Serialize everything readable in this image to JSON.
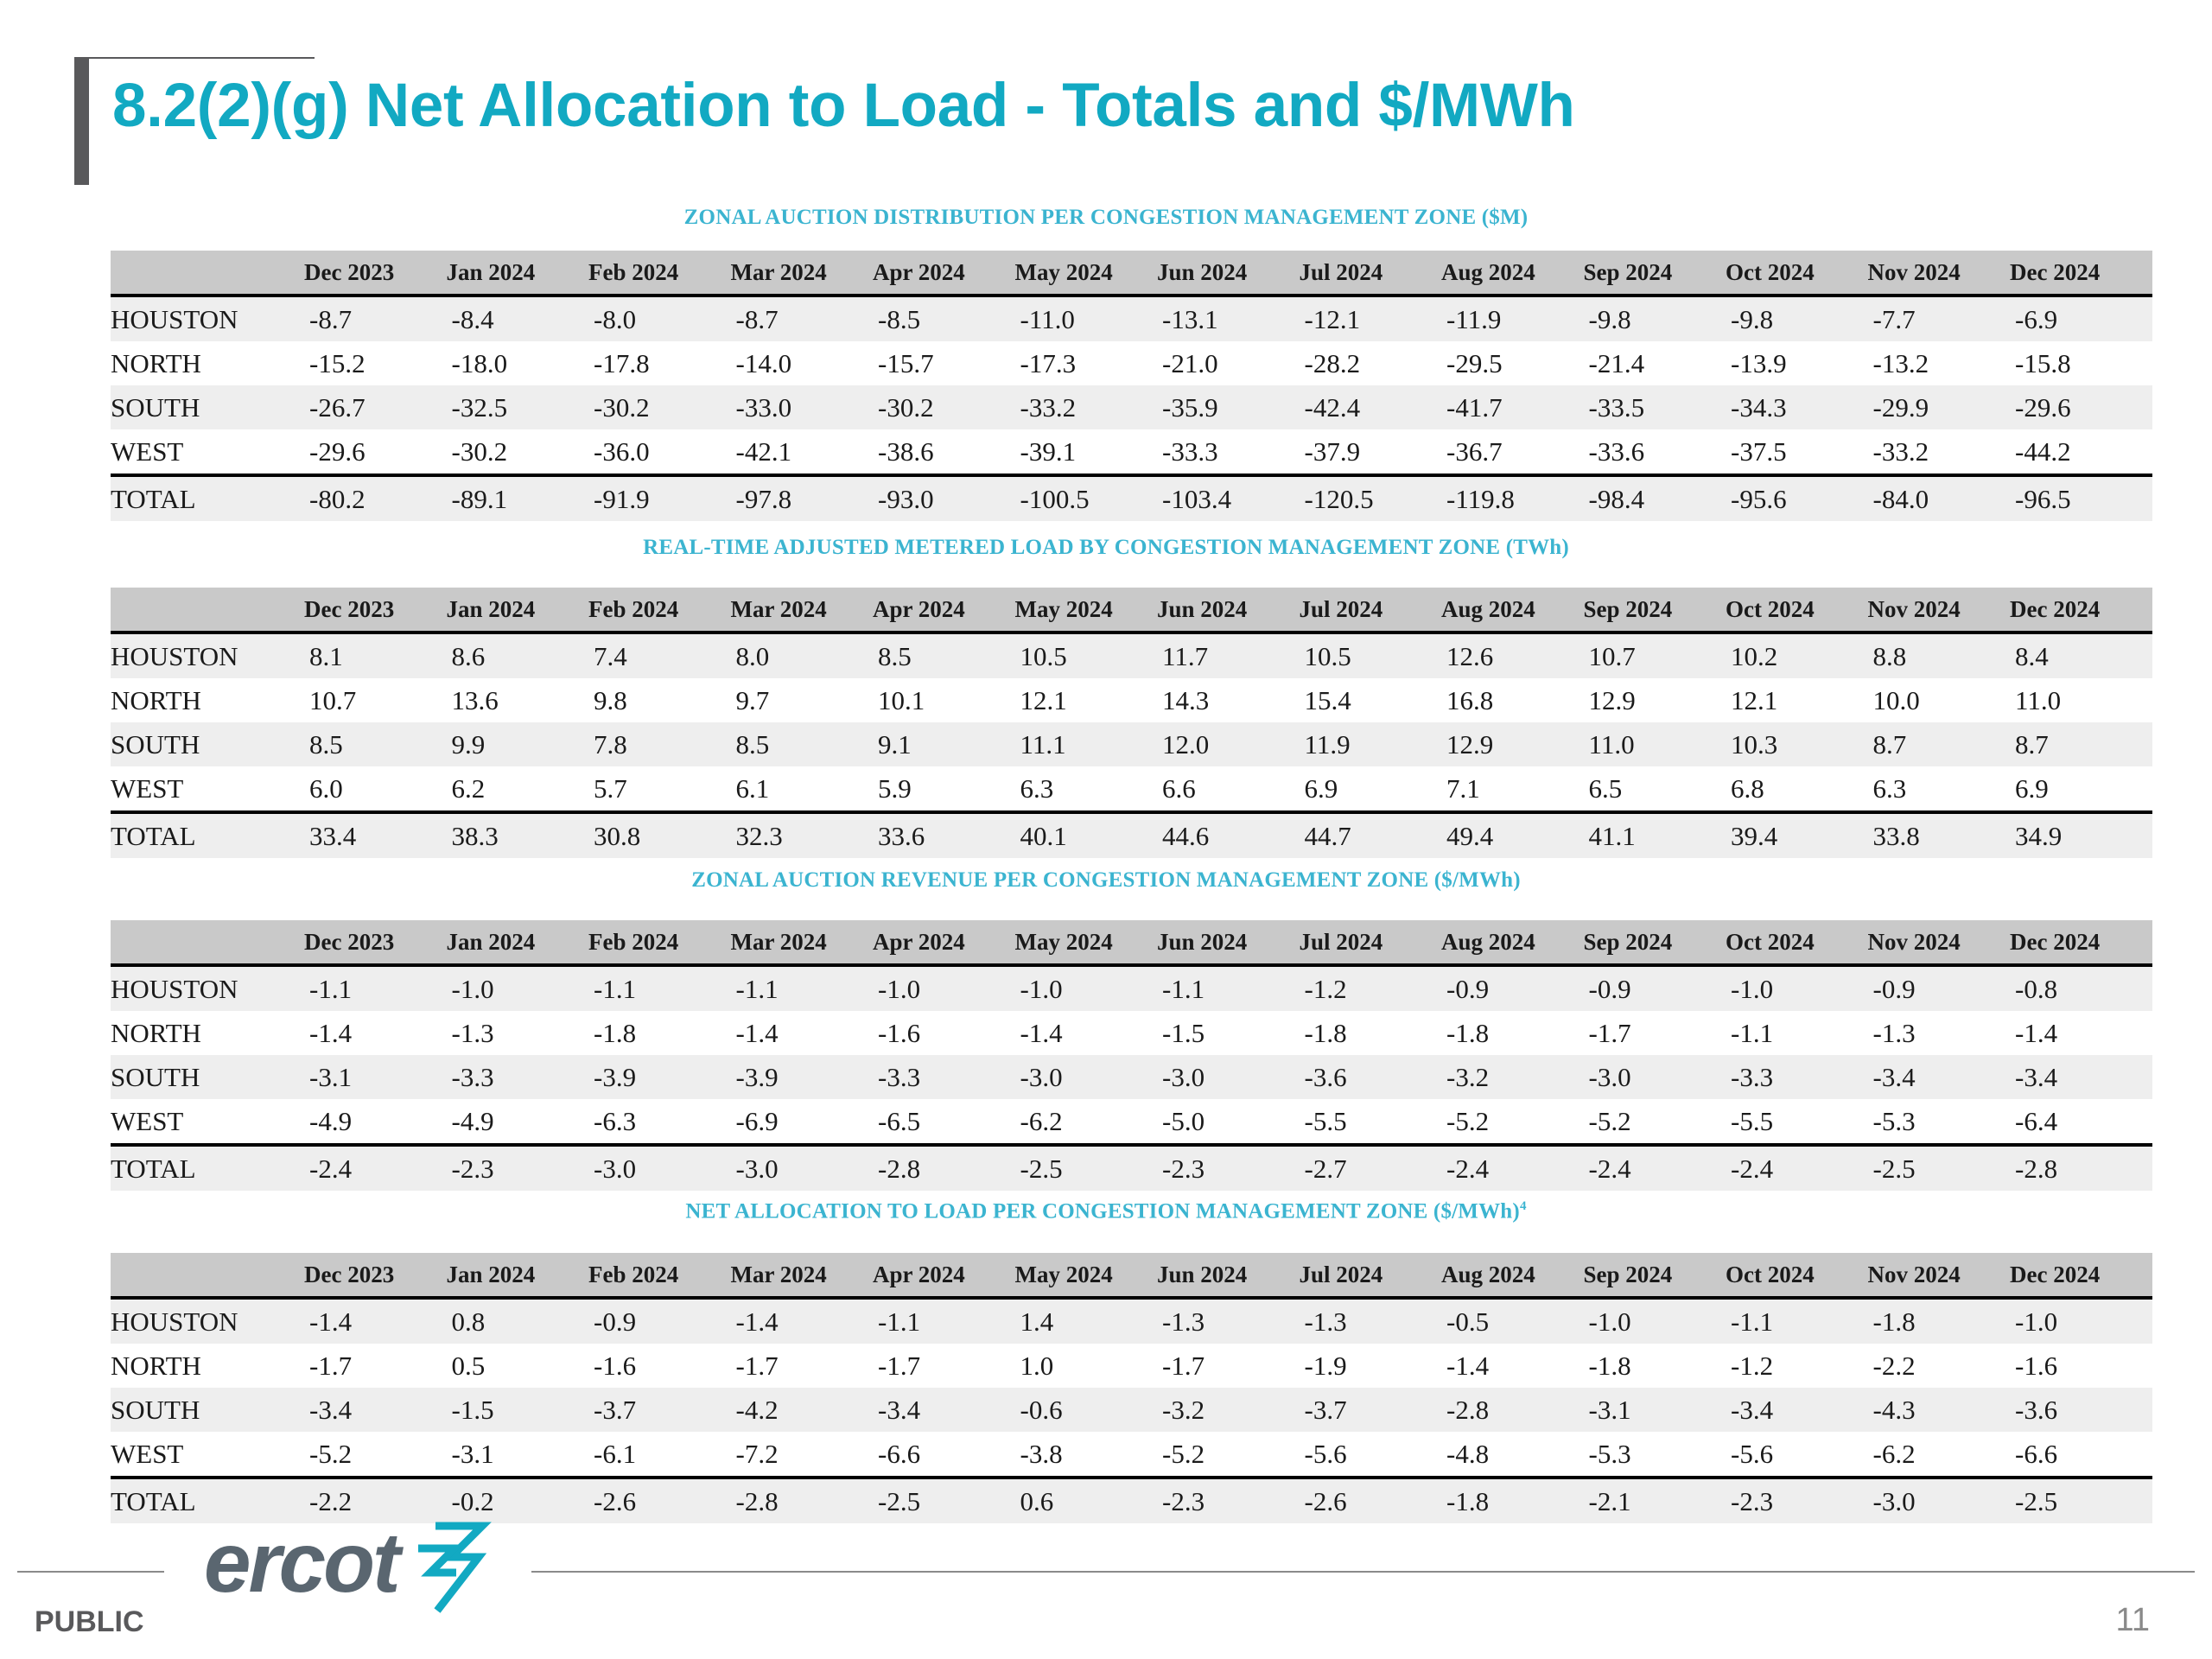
{
  "title": "8.2(2)(g) Net Allocation to Load - Totals and $/MWh",
  "columns": [
    "Dec 2023",
    "Jan 2024",
    "Feb 2024",
    "Mar 2024",
    "Apr 2024",
    "May 2024",
    "Jun 2024",
    "Jul 2024",
    "Aug 2024",
    "Sep 2024",
    "Oct 2024",
    "Nov 2024",
    "Dec 2024"
  ],
  "tables": [
    {
      "heading": "ZONAL AUCTION DISTRIBUTION PER CONGESTION MANAGEMENT ZONE ($M)",
      "superscript": "",
      "rows": [
        {
          "zone": "HOUSTON",
          "values": [
            "-8.7",
            "-8.4",
            "-8.0",
            "-8.7",
            "-8.5",
            "-11.0",
            "-13.1",
            "-12.1",
            "-11.9",
            "-9.8",
            "-9.8",
            "-7.7",
            "-6.9"
          ]
        },
        {
          "zone": "NORTH",
          "values": [
            "-15.2",
            "-18.0",
            "-17.8",
            "-14.0",
            "-15.7",
            "-17.3",
            "-21.0",
            "-28.2",
            "-29.5",
            "-21.4",
            "-13.9",
            "-13.2",
            "-15.8"
          ]
        },
        {
          "zone": "SOUTH",
          "values": [
            "-26.7",
            "-32.5",
            "-30.2",
            "-33.0",
            "-30.2",
            "-33.2",
            "-35.9",
            "-42.4",
            "-41.7",
            "-33.5",
            "-34.3",
            "-29.9",
            "-29.6"
          ]
        },
        {
          "zone": "WEST",
          "values": [
            "-29.6",
            "-30.2",
            "-36.0",
            "-42.1",
            "-38.6",
            "-39.1",
            "-33.3",
            "-37.9",
            "-36.7",
            "-33.6",
            "-37.5",
            "-33.2",
            "-44.2"
          ]
        },
        {
          "zone": "TOTAL",
          "values": [
            "-80.2",
            "-89.1",
            "-91.9",
            "-97.8",
            "-93.0",
            "-100.5",
            "-103.4",
            "-120.5",
            "-119.8",
            "-98.4",
            "-95.6",
            "-84.0",
            "-96.5"
          ]
        }
      ]
    },
    {
      "heading": "REAL-TIME ADJUSTED METERED LOAD BY CONGESTION MANAGEMENT ZONE (TWh)",
      "superscript": "",
      "rows": [
        {
          "zone": "HOUSTON",
          "values": [
            "8.1",
            "8.6",
            "7.4",
            "8.0",
            "8.5",
            "10.5",
            "11.7",
            "10.5",
            "12.6",
            "10.7",
            "10.2",
            "8.8",
            "8.4"
          ]
        },
        {
          "zone": "NORTH",
          "values": [
            "10.7",
            "13.6",
            "9.8",
            "9.7",
            "10.1",
            "12.1",
            "14.3",
            "15.4",
            "16.8",
            "12.9",
            "12.1",
            "10.0",
            "11.0"
          ]
        },
        {
          "zone": "SOUTH",
          "values": [
            "8.5",
            "9.9",
            "7.8",
            "8.5",
            "9.1",
            "11.1",
            "12.0",
            "11.9",
            "12.9",
            "11.0",
            "10.3",
            "8.7",
            "8.7"
          ]
        },
        {
          "zone": "WEST",
          "values": [
            "6.0",
            "6.2",
            "5.7",
            "6.1",
            "5.9",
            "6.3",
            "6.6",
            "6.9",
            "7.1",
            "6.5",
            "6.8",
            "6.3",
            "6.9"
          ]
        },
        {
          "zone": "TOTAL",
          "values": [
            "33.4",
            "38.3",
            "30.8",
            "32.3",
            "33.6",
            "40.1",
            "44.6",
            "44.7",
            "49.4",
            "41.1",
            "39.4",
            "33.8",
            "34.9"
          ]
        }
      ]
    },
    {
      "heading": "ZONAL AUCTION REVENUE PER CONGESTION MANAGEMENT ZONE ($/MWh)",
      "superscript": "",
      "rows": [
        {
          "zone": "HOUSTON",
          "values": [
            "-1.1",
            "-1.0",
            "-1.1",
            "-1.1",
            "-1.0",
            "-1.0",
            "-1.1",
            "-1.2",
            "-0.9",
            "-0.9",
            "-1.0",
            "-0.9",
            "-0.8"
          ]
        },
        {
          "zone": "NORTH",
          "values": [
            "-1.4",
            "-1.3",
            "-1.8",
            "-1.4",
            "-1.6",
            "-1.4",
            "-1.5",
            "-1.8",
            "-1.8",
            "-1.7",
            "-1.1",
            "-1.3",
            "-1.4"
          ]
        },
        {
          "zone": "SOUTH",
          "values": [
            "-3.1",
            "-3.3",
            "-3.9",
            "-3.9",
            "-3.3",
            "-3.0",
            "-3.0",
            "-3.6",
            "-3.2",
            "-3.0",
            "-3.3",
            "-3.4",
            "-3.4"
          ]
        },
        {
          "zone": "WEST",
          "values": [
            "-4.9",
            "-4.9",
            "-6.3",
            "-6.9",
            "-6.5",
            "-6.2",
            "-5.0",
            "-5.5",
            "-5.2",
            "-5.2",
            "-5.5",
            "-5.3",
            "-6.4"
          ]
        },
        {
          "zone": "TOTAL",
          "values": [
            "-2.4",
            "-2.3",
            "-3.0",
            "-3.0",
            "-2.8",
            "-2.5",
            "-2.3",
            "-2.7",
            "-2.4",
            "-2.4",
            "-2.4",
            "-2.5",
            "-2.8"
          ]
        }
      ]
    },
    {
      "heading": "NET ALLOCATION TO LOAD PER CONGESTION MANAGEMENT ZONE ($/MWh)",
      "superscript": "4",
      "rows": [
        {
          "zone": "HOUSTON",
          "values": [
            "-1.4",
            "0.8",
            "-0.9",
            "-1.4",
            "-1.1",
            "1.4",
            "-1.3",
            "-1.3",
            "-0.5",
            "-1.0",
            "-1.1",
            "-1.8",
            "-1.0"
          ]
        },
        {
          "zone": "NORTH",
          "values": [
            "-1.7",
            "0.5",
            "-1.6",
            "-1.7",
            "-1.7",
            "1.0",
            "-1.7",
            "-1.9",
            "-1.4",
            "-1.8",
            "-1.2",
            "-2.2",
            "-1.6"
          ]
        },
        {
          "zone": "SOUTH",
          "values": [
            "-3.4",
            "-1.5",
            "-3.7",
            "-4.2",
            "-3.4",
            "-0.6",
            "-3.2",
            "-3.7",
            "-2.8",
            "-3.1",
            "-3.4",
            "-4.3",
            "-3.6"
          ]
        },
        {
          "zone": "WEST",
          "values": [
            "-5.2",
            "-3.1",
            "-6.1",
            "-7.2",
            "-6.6",
            "-3.8",
            "-5.2",
            "-5.6",
            "-4.8",
            "-5.3",
            "-5.6",
            "-6.2",
            "-6.6"
          ]
        },
        {
          "zone": "TOTAL",
          "values": [
            "-2.2",
            "-0.2",
            "-2.6",
            "-2.8",
            "-2.5",
            "0.6",
            "-2.3",
            "-2.6",
            "-1.8",
            "-2.1",
            "-2.3",
            "-3.0",
            "-2.5"
          ]
        }
      ]
    }
  ],
  "footer": {
    "logo_text": "ercot",
    "classification": "PUBLIC",
    "page_number": "11",
    "brand_color": "#12a9c2",
    "logo_color": "#5a6670"
  }
}
